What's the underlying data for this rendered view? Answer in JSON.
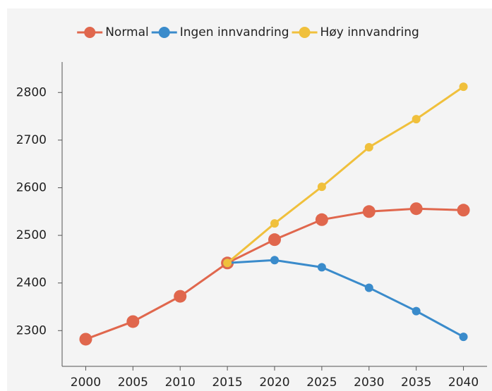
{
  "chart_data": {
    "type": "line",
    "x": [
      2000,
      2005,
      2010,
      2015,
      2020,
      2025,
      2030,
      2035,
      2040
    ],
    "series": [
      {
        "name": "Normal",
        "color": "#e0674d",
        "values": [
          2282,
          2319,
          2372,
          2442,
          2491,
          2533,
          2550,
          2556,
          2553
        ]
      },
      {
        "name": "Ingen innvandring",
        "color": "#3a8bcb",
        "values": [
          null,
          null,
          null,
          2442,
          2448,
          2433,
          2390,
          2341,
          2287
        ]
      },
      {
        "name": "Høy innvandring",
        "color": "#f0c03c",
        "values": [
          null,
          null,
          null,
          2442,
          2525,
          2602,
          2685,
          2744,
          2812
        ]
      }
    ],
    "xlim": [
      1997.5,
      2042.5
    ],
    "xticks": [
      2000,
      2005,
      2010,
      2015,
      2020,
      2025,
      2030,
      2035,
      2040
    ],
    "ylim": [
      2225,
      2864
    ],
    "yticks": [
      2300,
      2400,
      2500,
      2600,
      2700,
      2800
    ],
    "grid": false,
    "legend": "top"
  }
}
